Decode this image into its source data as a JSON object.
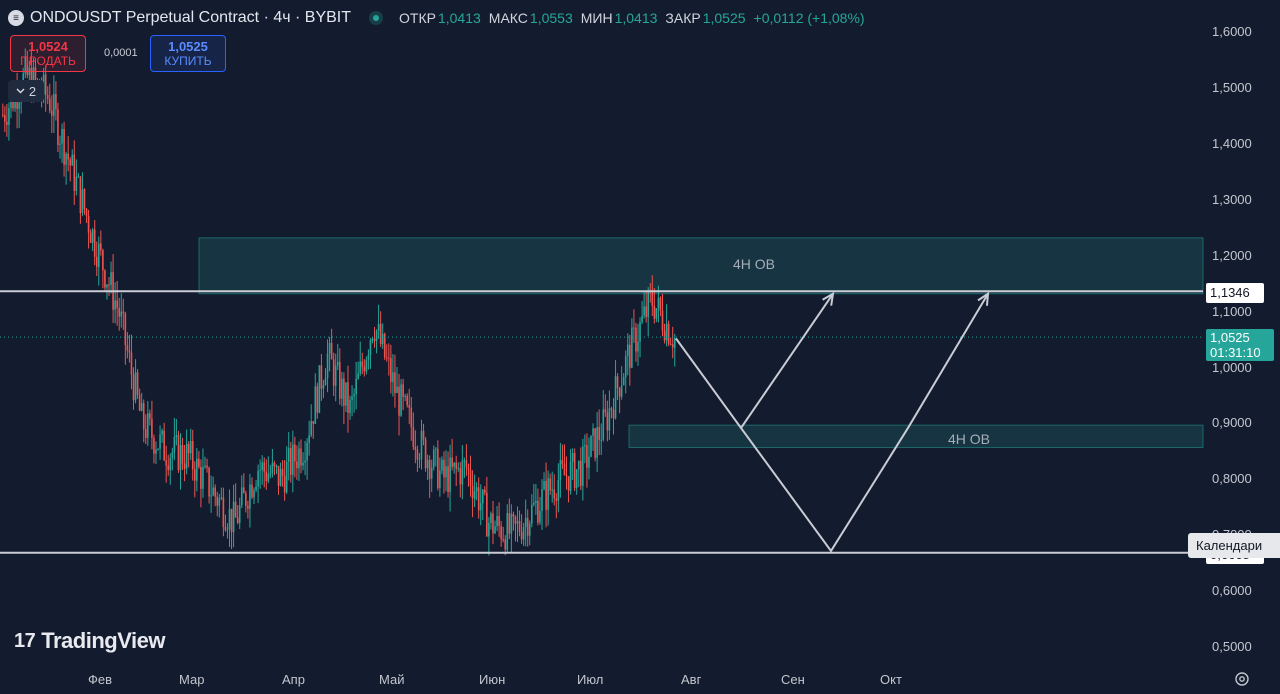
{
  "header": {
    "logo_letter": "≡",
    "symbol_title": "ONDOUSDT Perpetual Contract · 4ч · BYBIT",
    "ohlc": [
      {
        "label": "ОТКР",
        "value": "1,0413"
      },
      {
        "label": "МАКС",
        "value": "1,0553"
      },
      {
        "label": "МИН",
        "value": "1,0413"
      },
      {
        "label": "ЗАКР",
        "value": "1,0525"
      },
      {
        "label": "",
        "value": "+0,0112 (+1,08%)"
      }
    ],
    "status_color": "#26a69a"
  },
  "trade": {
    "sell_price": "1,0524",
    "sell_label": "ПРОДАТЬ",
    "buy_price": "1,0525",
    "buy_label": "КУПИТЬ",
    "spread": "0,0001"
  },
  "collapse": {
    "icon": "chevron-down-icon",
    "count": "2"
  },
  "branding": {
    "logo_text": "TradingView"
  },
  "price_axis": {
    "ticks": [
      "1,6000",
      "1,5000",
      "1,4000",
      "1,3000",
      "1,2000",
      "1,1000",
      "1,0000",
      "0,9000",
      "0,8000",
      "0,7000",
      "0,6000",
      "0,5000"
    ],
    "level_tag": "1,1346",
    "current_price": "1,0525",
    "countdown": "01:31:10",
    "low_tag": "0,6668"
  },
  "time_axis": {
    "ticks": [
      "Фев",
      "Мар",
      "Апр",
      "Май",
      "Июн",
      "Июл",
      "Авг",
      "Сен",
      "Окт"
    ]
  },
  "calendar_tooltip": "Календари",
  "annotations": {
    "upper_ob_label": "4H OB",
    "lower_ob_label": "4H OB"
  },
  "colors": {
    "background": "#131c2e",
    "up": "#26a69a",
    "down": "#ef5350",
    "zone_fill": "rgba(38,166,154,0.18)",
    "zone_border": "#26a69a",
    "drawing": "#c9ccd4"
  },
  "chart_data": {
    "type": "candlestick",
    "symbol": "ONDOUSDT",
    "timeframe": "4ч",
    "ylim": [
      0.5,
      1.6
    ],
    "horizontal_levels": [
      1.1346,
      0.6668
    ],
    "zones": [
      {
        "label": "4H OB",
        "from": 1.13,
        "to": 1.23
      },
      {
        "label": "4H OB",
        "from": 0.855,
        "to": 0.895
      }
    ],
    "path_projection": [
      1.05,
      0.89,
      1.13,
      0.89,
      0.67,
      0.89,
      1.13
    ],
    "price_trend": [
      1.45,
      1.52,
      1.48,
      1.35,
      1.22,
      1.1,
      0.9,
      0.85,
      0.84,
      0.78,
      0.72,
      0.82,
      0.8,
      0.86,
      1.02,
      0.92,
      1.08,
      0.95,
      0.86,
      0.8,
      0.82,
      0.72,
      0.7,
      0.75,
      0.8,
      0.82,
      0.9,
      1.02,
      1.12,
      1.05
    ]
  }
}
